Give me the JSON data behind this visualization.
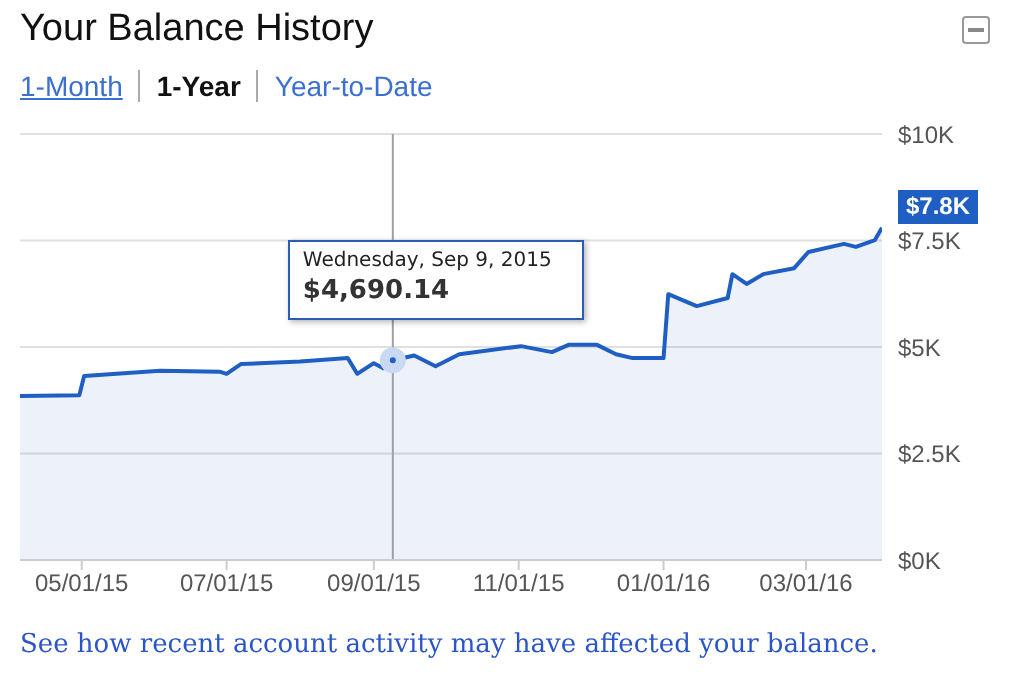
{
  "chart_data": {
    "type": "area",
    "title": "Your Balance History",
    "color": "#1f5fc4",
    "x": [
      "2015-04-05",
      "2015-04-30",
      "2015-05-02",
      "2015-06-03",
      "2015-06-28",
      "2015-07-01",
      "2015-07-07",
      "2015-08-01",
      "2015-08-21",
      "2015-08-25",
      "2015-09-01",
      "2015-09-05",
      "2015-09-09",
      "2015-09-18",
      "2015-09-27",
      "2015-10-07",
      "2015-11-02",
      "2015-11-15",
      "2015-11-22",
      "2015-12-04",
      "2015-12-12",
      "2015-12-19",
      "2016-01-01",
      "2016-01-03",
      "2016-01-15",
      "2016-01-28",
      "2016-01-30",
      "2016-02-05",
      "2016-02-12",
      "2016-02-25",
      "2016-03-02",
      "2016-03-17",
      "2016-03-22",
      "2016-03-30",
      "2016-04-02"
    ],
    "values": [
      3850,
      3870,
      4320,
      4440,
      4420,
      4370,
      4600,
      4660,
      4740,
      4370,
      4620,
      4500,
      4690.14,
      4800,
      4550,
      4830,
      5020,
      4880,
      5050,
      5050,
      4830,
      4740,
      4740,
      6240,
      5960,
      6150,
      6710,
      6480,
      6710,
      6850,
      7230,
      7420,
      7350,
      7510,
      7800
    ],
    "xlim": [
      "2015-04-05",
      "2016-04-02"
    ],
    "xticks": [
      {
        "value": "2015-05-01",
        "label": "05/01/15"
      },
      {
        "value": "2015-07-01",
        "label": "07/01/15"
      },
      {
        "value": "2015-09-01",
        "label": "09/01/15"
      },
      {
        "value": "2015-11-01",
        "label": "11/01/15"
      },
      {
        "value": "2016-01-01",
        "label": "01/01/16"
      },
      {
        "value": "2016-03-01",
        "label": "03/01/16"
      }
    ],
    "ylim": [
      0,
      10000
    ],
    "yticks": [
      {
        "value": 0,
        "label": "$0K"
      },
      {
        "value": 2500,
        "label": "$2.5K"
      },
      {
        "value": 5000,
        "label": "$5K"
      },
      {
        "value": 7500,
        "label": "$7.5K"
      },
      {
        "value": 10000,
        "label": "$10K"
      }
    ],
    "grid": "y",
    "marker": "none",
    "ref_lines": [
      {
        "axis": "x",
        "value": "2015-09-09",
        "color": "#a0a0a0"
      }
    ],
    "annotations": [
      "1-Month",
      "1-Year",
      "Year-to-Date",
      "Wednesday, Sep 9, 2015",
      "$4,690.14",
      {
        "text": "$7.8K",
        "x": "2016-04-02",
        "y": 7800
      },
      "See how recent account activity may have affected your balance."
    ]
  }
}
